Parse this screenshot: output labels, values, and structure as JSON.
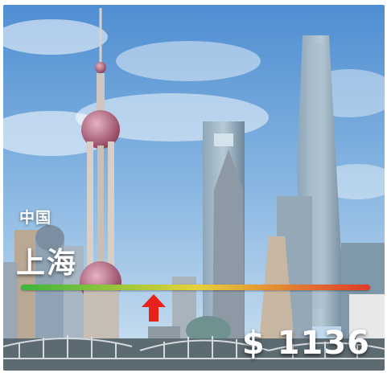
{
  "location": {
    "country": "中国",
    "city": "上海"
  },
  "price_meter": {
    "gradient_colors": [
      "#39b63c",
      "#e6d23a",
      "#e03a2a"
    ],
    "indicator_position_fraction": 0.38,
    "indicator_color": "#e8221b",
    "price_label": "$ 1136"
  },
  "scene": {
    "sky_colors": [
      "#4e8fd0",
      "#bcd8ef"
    ],
    "description_icon": "skyline-photo"
  }
}
